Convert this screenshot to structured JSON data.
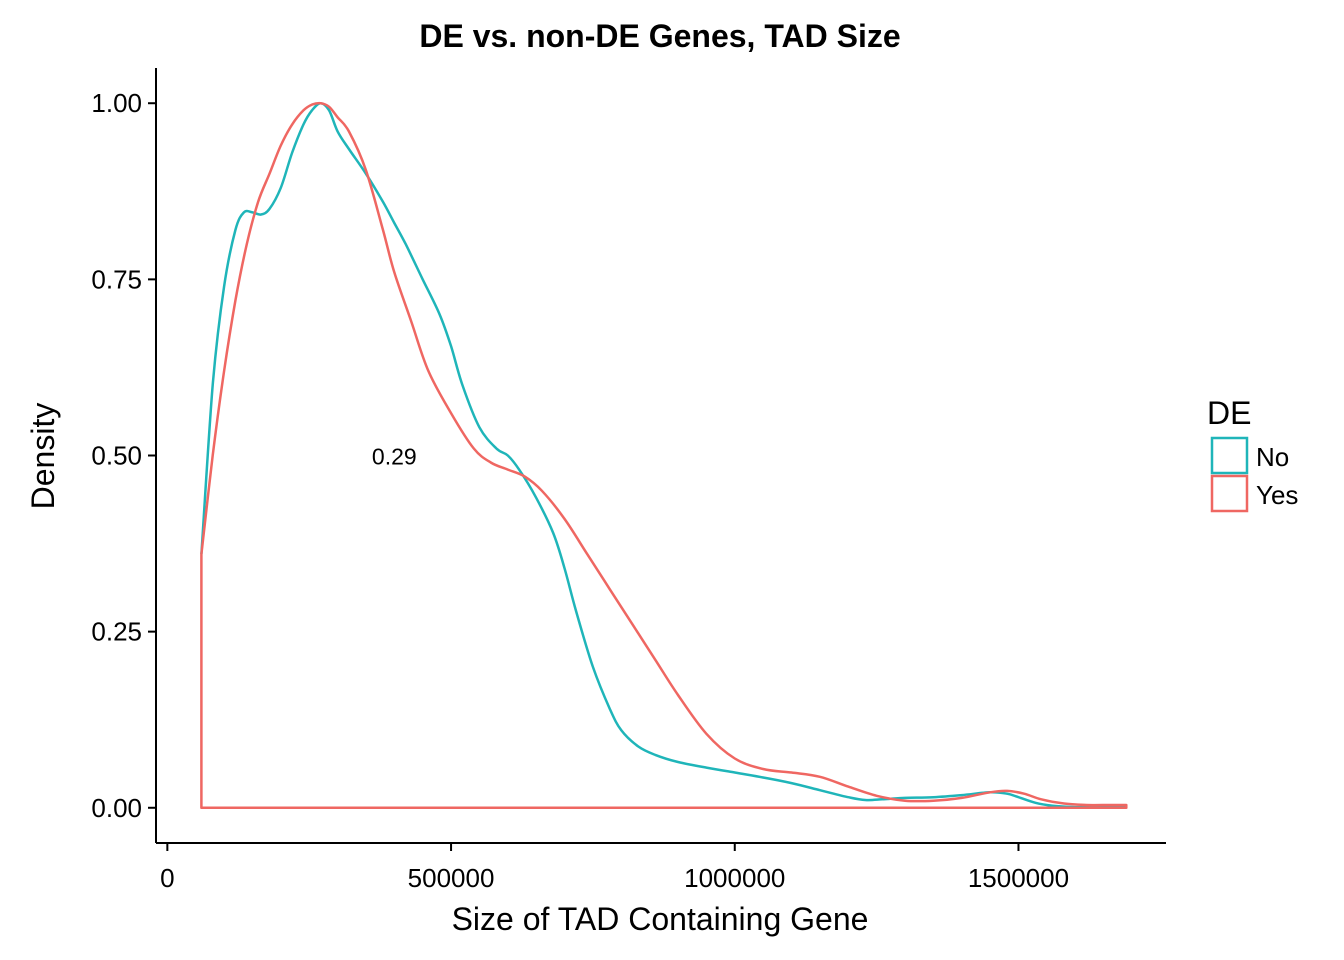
{
  "chart_data": {
    "type": "line",
    "title": "DE vs. non-DE Genes, TAD Size",
    "xlabel": "Size of TAD Containing Gene",
    "ylabel": "Density",
    "xlim": [
      -20000,
      1760000
    ],
    "ylim": [
      -0.05,
      1.05
    ],
    "x_ticks": [
      0,
      500000,
      1000000,
      1500000
    ],
    "x_tick_labels": [
      "0",
      "500000",
      "1000000",
      "1500000"
    ],
    "y_ticks": [
      0,
      0.25,
      0.5,
      0.75,
      1.0
    ],
    "y_tick_labels": [
      "0.00",
      "0.25",
      "0.50",
      "0.75",
      "1.00"
    ],
    "grid": false,
    "legend": {
      "title": "DE",
      "position": "right"
    },
    "annotation": {
      "text": "0.29",
      "x": 400000,
      "y": 0.5
    },
    "series": [
      {
        "name": "No",
        "color": "#1fb5b9",
        "closed_to_baseline": false,
        "x": [
          60000,
          80000,
          100000,
          120000,
          135000,
          150000,
          165000,
          180000,
          200000,
          220000,
          240000,
          255000,
          270000,
          285000,
          300000,
          320000,
          350000,
          380000,
          400000,
          420000,
          450000,
          480000,
          500000,
          520000,
          550000,
          580000,
          600000,
          620000,
          650000,
          680000,
          700000,
          720000,
          750000,
          780000,
          800000,
          830000,
          860000,
          900000,
          950000,
          1000000,
          1050000,
          1100000,
          1150000,
          1200000,
          1230000,
          1260000,
          1300000,
          1350000,
          1400000,
          1450000,
          1480000,
          1500000,
          1530000,
          1560000,
          1600000,
          1650000,
          1690000
        ],
        "y": [
          0.36,
          0.6,
          0.74,
          0.82,
          0.845,
          0.845,
          0.842,
          0.85,
          0.88,
          0.93,
          0.97,
          0.99,
          1.0,
          0.99,
          0.96,
          0.935,
          0.9,
          0.86,
          0.83,
          0.8,
          0.75,
          0.7,
          0.655,
          0.6,
          0.54,
          0.51,
          0.5,
          0.48,
          0.44,
          0.39,
          0.34,
          0.28,
          0.2,
          0.14,
          0.11,
          0.087,
          0.075,
          0.065,
          0.057,
          0.05,
          0.043,
          0.035,
          0.025,
          0.015,
          0.011,
          0.012,
          0.014,
          0.015,
          0.018,
          0.022,
          0.02,
          0.015,
          0.007,
          0.003,
          0.001,
          0.001,
          0.001
        ]
      },
      {
        "name": "Yes",
        "color": "#ef6762",
        "closed_to_baseline": true,
        "x": [
          60000,
          80000,
          100000,
          120000,
          140000,
          160000,
          180000,
          200000,
          220000,
          240000,
          255000,
          270000,
          285000,
          300000,
          320000,
          350000,
          380000,
          400000,
          430000,
          460000,
          500000,
          540000,
          570000,
          600000,
          630000,
          660000,
          700000,
          740000,
          780000,
          820000,
          860000,
          900000,
          950000,
          1000000,
          1050000,
          1100000,
          1150000,
          1200000,
          1250000,
          1300000,
          1350000,
          1400000,
          1450000,
          1480000,
          1510000,
          1540000,
          1580000,
          1620000,
          1660000,
          1690000
        ],
        "y": [
          0.36,
          0.5,
          0.62,
          0.72,
          0.8,
          0.86,
          0.9,
          0.94,
          0.97,
          0.99,
          0.998,
          1.0,
          0.995,
          0.98,
          0.96,
          0.905,
          0.82,
          0.76,
          0.69,
          0.62,
          0.56,
          0.51,
          0.49,
          0.48,
          0.47,
          0.45,
          0.41,
          0.36,
          0.31,
          0.26,
          0.21,
          0.16,
          0.105,
          0.07,
          0.055,
          0.05,
          0.044,
          0.03,
          0.017,
          0.01,
          0.01,
          0.014,
          0.022,
          0.024,
          0.02,
          0.012,
          0.006,
          0.004,
          0.004,
          0.004
        ]
      }
    ]
  }
}
